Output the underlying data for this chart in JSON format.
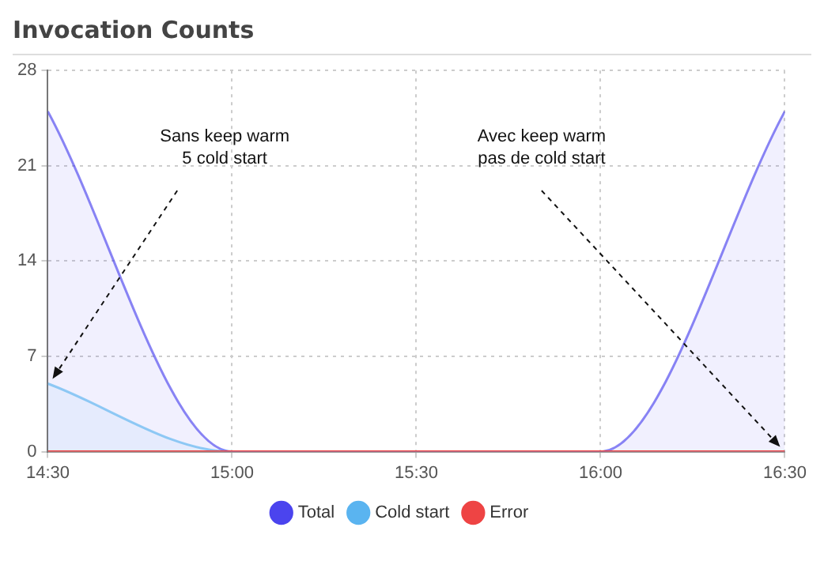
{
  "chart_data": {
    "type": "line",
    "title": "Invocation Counts",
    "x": [
      14.5,
      15,
      15.5,
      16,
      16.5
    ],
    "series": [
      {
        "name": "Total",
        "type": "area",
        "color": "#4b44ee",
        "values": [
          25,
          0,
          0,
          0,
          25
        ]
      },
      {
        "name": "Cold start",
        "type": "area",
        "color": "#5ab4f0",
        "values": [
          5,
          0,
          0,
          0,
          0
        ]
      },
      {
        "name": "Error",
        "type": "line",
        "color": "#ee4444",
        "values": [
          0,
          0,
          0,
          0,
          0
        ]
      }
    ],
    "xlim": [
      14.5,
      16.5
    ],
    "xticks": [
      {
        "value": 14.5,
        "label": "14:30"
      },
      {
        "value": 15,
        "label": "15:00"
      },
      {
        "value": 15.5,
        "label": "15:30"
      },
      {
        "value": 16,
        "label": "16:00"
      },
      {
        "value": 16.5,
        "label": "16:30"
      }
    ],
    "ylim": [
      0,
      28
    ],
    "yticks": [
      0,
      7,
      14,
      21,
      28
    ],
    "grid": true,
    "legend": "bottom",
    "marker": "none",
    "line_style": "solid",
    "annotations": [
      {
        "text": "Sans keep warm\n5 cold start",
        "x": 14.5,
        "y": 5
      },
      {
        "text": "Avec keep warm\npas de cold start",
        "x": 16.5,
        "y": 0
      }
    ]
  }
}
